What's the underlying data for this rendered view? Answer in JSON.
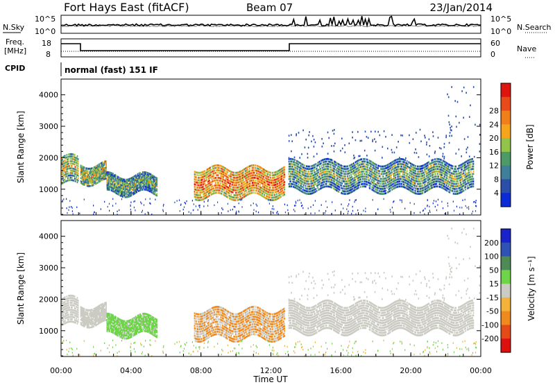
{
  "header": {
    "station": "Fort Hays East (fitACF)",
    "beam": "Beam 07",
    "date": "23/Jan/2014"
  },
  "noise_panel": {
    "left_label": "N.Sky",
    "right_label": "N.Search",
    "left_ticks": [
      "10^5",
      "10^0"
    ],
    "right_ticks": [
      "10^5",
      "10^0"
    ]
  },
  "freq_panel": {
    "left_label_line1": "Freq.",
    "left_label_line2": "[MHz]",
    "right_label": "Nave",
    "left_ticks": [
      "18",
      "8"
    ],
    "right_ticks": [
      "60",
      "0"
    ]
  },
  "cpid": {
    "label": "CPID",
    "mode": "normal (fast) 151 IF"
  },
  "chart_data": [
    {
      "type": "heatmap",
      "name": "power",
      "ylabel": "Slant Range [km]",
      "yticks": [
        1000,
        2000,
        3000,
        4000
      ],
      "ylim": [
        180,
        4500
      ],
      "colorbar_label": "Power [dB]",
      "colorbar_ticks": [
        "4",
        "8",
        "12",
        "16",
        "20",
        "24",
        "28"
      ],
      "colorbar_colors": [
        "#0b2bd6",
        "#2b4ea8",
        "#3f7f9a",
        "#4e9a67",
        "#92c44c",
        "#f4a51c",
        "#f07f1a",
        "#e84a1a",
        "#e0140f"
      ]
    },
    {
      "type": "heatmap",
      "name": "velocity",
      "ylabel": "Slant Range [km]",
      "yticks": [
        1000,
        2000,
        3000,
        4000
      ],
      "ylim": [
        180,
        4500
      ],
      "colorbar_label": "Velocity [m s⁻¹]",
      "colorbar_ticks": [
        "200",
        "100",
        "50",
        "15",
        "-15",
        "-50",
        "-100",
        "-200"
      ],
      "colorbar_colors": [
        "#1a22c9",
        "#2f53b4",
        "#4d8a55",
        "#6ed44a",
        "#cbcbc3",
        "#f3b23a",
        "#ef8a1f",
        "#e44a18",
        "#dd1010"
      ]
    }
  ],
  "time_axis": {
    "ticks": [
      "00:00",
      "04:00",
      "08:00",
      "12:00",
      "16:00",
      "20:00",
      "00:00"
    ],
    "label": "Time UT"
  }
}
